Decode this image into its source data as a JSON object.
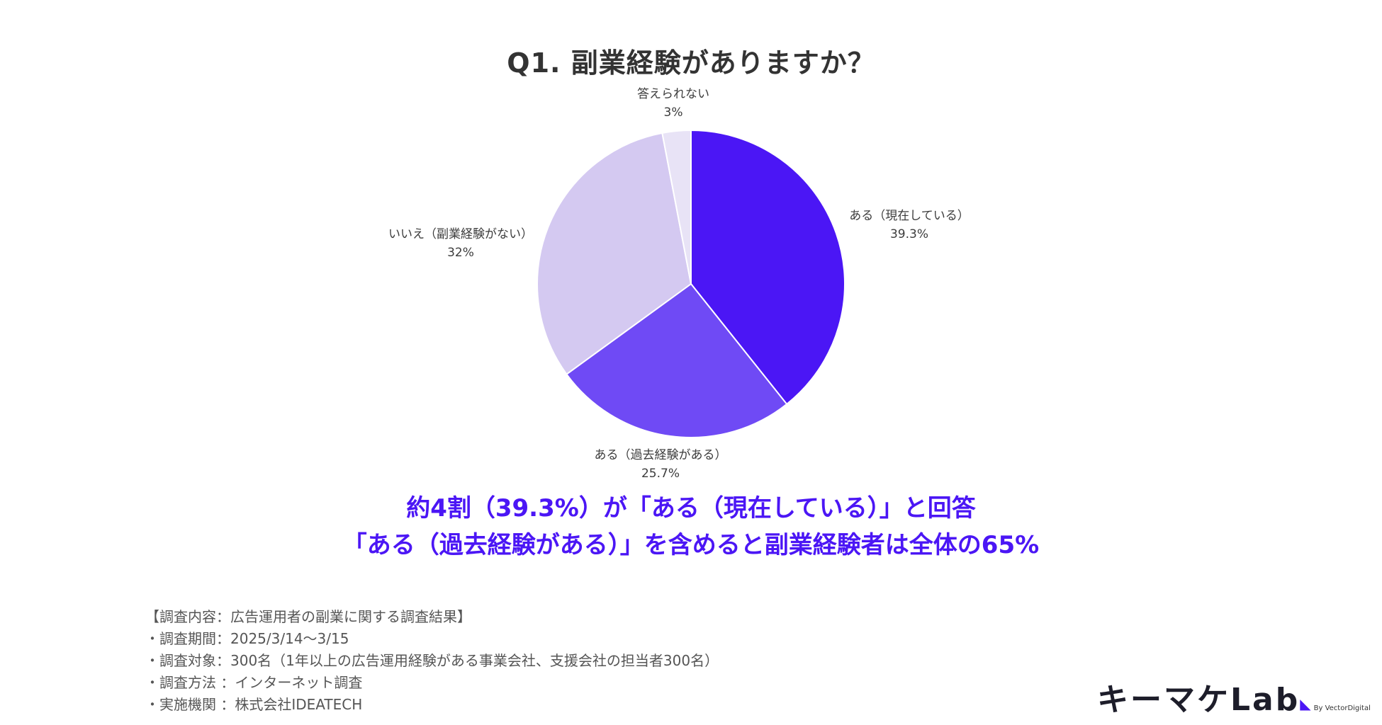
{
  "chart_data": {
    "type": "pie",
    "title": "Q1. 副業経験がありますか？",
    "slices": [
      {
        "label": "ある（現在している）",
        "value": 39.3,
        "display": "39.3%",
        "color": "#4b16f5"
      },
      {
        "label": "ある（過去経験がある）",
        "value": 25.7,
        "display": "25.7%",
        "color": "#6f4af5"
      },
      {
        "label": "いいえ（副業経験がない）",
        "value": 32,
        "display": "32%",
        "color": "#d4c9f1"
      },
      {
        "label": "答えられない",
        "value": 3,
        "display": "3%",
        "color": "#e8e3f6"
      }
    ]
  },
  "headline": {
    "line1": "約4割（39.3%）が「ある（現在している）」と回答",
    "line2": "「ある（過去経験がある）」を含めると副業経験者は全体の65%"
  },
  "survey": {
    "title": "【調査内容：広告運用者の副業に関する調査結果】",
    "items": [
      "・調査期間：2025/3/14～3/15",
      "・調査対象：300名（1年以上の広告運用経験がある事業会社、支援会社の担当者300名）",
      "・調査方法 ：インターネット調査",
      "・実施機関 ：株式会社IDEATECH"
    ]
  },
  "logo": {
    "name": "キーマケLab",
    "sub": "By VectorDigital"
  }
}
